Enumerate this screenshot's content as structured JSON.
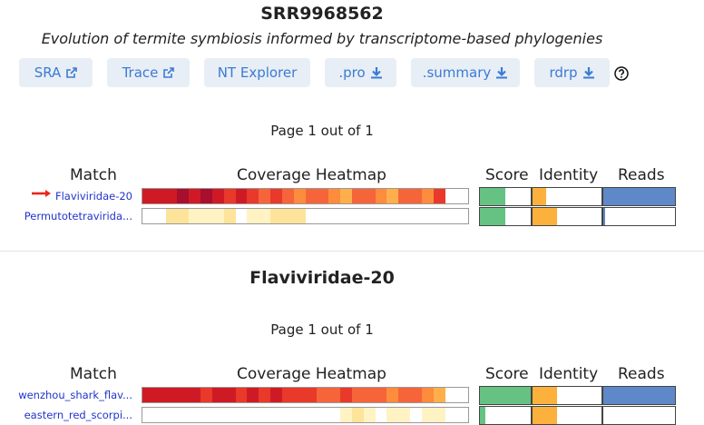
{
  "header": {
    "run_id": "SRR9968562",
    "study_title": "Evolution of termite symbiosis informed by transcriptome-based phylogenies"
  },
  "buttons": [
    {
      "label": "SRA",
      "icon": "external-link-icon"
    },
    {
      "label": "Trace",
      "icon": "external-link-icon"
    },
    {
      "label": "NT Explorer",
      "icon": ""
    },
    {
      "label": ".pro",
      "icon": "download-icon"
    },
    {
      "label": ".summary",
      "icon": "download-icon"
    },
    {
      "label": "rdrp",
      "icon": "download-icon"
    }
  ],
  "help_icon": "question-circle-icon",
  "colors": {
    "button_bg": "#e8eef5",
    "button_text": "#3a7bd5",
    "link": "#2233cc",
    "score": "#66c283",
    "identity": "#fbb13c",
    "reads": "#5e88c7",
    "arrow": "#e8261e"
  },
  "heatmap_palette": [
    "#ffffff",
    "#fff3c4",
    "#fee49a",
    "#fdcf6e",
    "#feaf4c",
    "#fd8c3c",
    "#f6643a",
    "#e8392a",
    "#cf1a26",
    "#a80e2d"
  ],
  "summary": {
    "pager": "Page 1 out of 1",
    "headers": {
      "match": "Match",
      "heatmap": "Coverage Heatmap",
      "score": "Score",
      "identity": "Identity",
      "reads": "Reads"
    },
    "rows": [
      {
        "name": "Flaviviridae-20",
        "selected": true,
        "cells": [
          8,
          8,
          8,
          9,
          8,
          9,
          8,
          7,
          8,
          7,
          6,
          7,
          6,
          5,
          6,
          6,
          5,
          4,
          6,
          6,
          5,
          4,
          6,
          6,
          5,
          7,
          0,
          0
        ],
        "score": 0.5,
        "identity": 0.2,
        "reads": 1.0
      },
      {
        "name": "Permutotetravirida...",
        "selected": false,
        "cells": [
          0,
          0,
          2,
          2,
          1,
          1,
          1,
          2,
          0,
          1,
          1,
          2,
          2,
          2,
          0,
          0,
          0,
          0,
          0,
          0,
          0,
          0,
          0,
          0,
          0,
          0,
          0,
          0
        ],
        "score": 0.5,
        "identity": 0.35,
        "reads": 0.03
      }
    ]
  },
  "family_section": {
    "title": "Flaviviridae-20",
    "pager": "Page 1 out of 1",
    "headers": {
      "match": "Match",
      "heatmap": "Coverage Heatmap",
      "score": "Score",
      "identity": "Identity",
      "reads": "Reads"
    },
    "rows": [
      {
        "name": "wenzhou_shark_flav...",
        "cells": [
          8,
          8,
          8,
          8,
          8,
          7,
          8,
          8,
          7,
          8,
          7,
          8,
          7,
          7,
          7,
          6,
          6,
          7,
          6,
          6,
          6,
          5,
          6,
          6,
          5,
          4,
          0,
          0
        ],
        "score": 1.0,
        "identity": 0.35,
        "reads": 1.0
      },
      {
        "name": "eastern_red_scorpi...",
        "cells": [
          0,
          0,
          0,
          0,
          0,
          0,
          0,
          0,
          0,
          0,
          0,
          0,
          0,
          0,
          0,
          0,
          0,
          1,
          2,
          1,
          0,
          1,
          1,
          0,
          1,
          1,
          0,
          0
        ],
        "score": 0.1,
        "identity": 0.35,
        "reads": 0.0
      }
    ]
  }
}
